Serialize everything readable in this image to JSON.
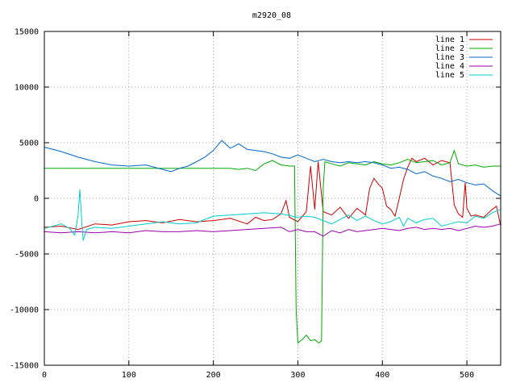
{
  "chart_data": {
    "type": "line",
    "title": "m2920_08",
    "xlabel": "",
    "ylabel": "",
    "xlim": [
      0,
      540
    ],
    "ylim": [
      -15000,
      15000
    ],
    "x_ticks": [
      0,
      100,
      200,
      300,
      400,
      500
    ],
    "y_ticks": [
      -15000,
      -10000,
      -5000,
      0,
      5000,
      10000,
      15000
    ],
    "grid": true,
    "legend_position": "top-right",
    "series": [
      {
        "name": "line 1",
        "color": "#cc0000",
        "points": [
          [
            0,
            -2600
          ],
          [
            20,
            -2500
          ],
          [
            40,
            -2800
          ],
          [
            60,
            -2300
          ],
          [
            80,
            -2400
          ],
          [
            100,
            -2100
          ],
          [
            120,
            -2000
          ],
          [
            140,
            -2200
          ],
          [
            160,
            -1900
          ],
          [
            180,
            -2100
          ],
          [
            200,
            -2000
          ],
          [
            220,
            -1800
          ],
          [
            240,
            -2300
          ],
          [
            250,
            -1700
          ],
          [
            260,
            -2000
          ],
          [
            270,
            -1900
          ],
          [
            280,
            -1400
          ],
          [
            286,
            -200
          ],
          [
            290,
            -1700
          ],
          [
            300,
            -2100
          ],
          [
            310,
            -1200
          ],
          [
            315,
            2900
          ],
          [
            320,
            -1000
          ],
          [
            324,
            3300
          ],
          [
            330,
            -1200
          ],
          [
            340,
            -1500
          ],
          [
            350,
            -800
          ],
          [
            360,
            -1800
          ],
          [
            370,
            -900
          ],
          [
            380,
            -1500
          ],
          [
            385,
            900
          ],
          [
            390,
            1800
          ],
          [
            395,
            1300
          ],
          [
            400,
            900
          ],
          [
            405,
            -700
          ],
          [
            410,
            -1000
          ],
          [
            415,
            -1600
          ],
          [
            420,
            0
          ],
          [
            425,
            1700
          ],
          [
            430,
            2800
          ],
          [
            435,
            3600
          ],
          [
            440,
            3300
          ],
          [
            450,
            3600
          ],
          [
            460,
            3000
          ],
          [
            470,
            3400
          ],
          [
            480,
            3200
          ],
          [
            485,
            -600
          ],
          [
            490,
            -1400
          ],
          [
            495,
            -1700
          ],
          [
            498,
            1400
          ],
          [
            500,
            -900
          ],
          [
            505,
            -1600
          ],
          [
            510,
            -1500
          ],
          [
            520,
            -1700
          ],
          [
            530,
            -1000
          ],
          [
            535,
            -700
          ],
          [
            540,
            -2500
          ]
        ]
      },
      {
        "name": "line 2",
        "color": "#00aa00",
        "points": [
          [
            0,
            2700
          ],
          [
            50,
            2700
          ],
          [
            100,
            2700
          ],
          [
            150,
            2700
          ],
          [
            200,
            2700
          ],
          [
            220,
            2700
          ],
          [
            230,
            2600
          ],
          [
            240,
            2700
          ],
          [
            250,
            2500
          ],
          [
            260,
            3100
          ],
          [
            270,
            3400
          ],
          [
            280,
            3000
          ],
          [
            290,
            2900
          ],
          [
            296,
            2900
          ],
          [
            298,
            -10000
          ],
          [
            300,
            -13000
          ],
          [
            305,
            -12700
          ],
          [
            310,
            -12300
          ],
          [
            315,
            -12800
          ],
          [
            320,
            -12700
          ],
          [
            325,
            -13000
          ],
          [
            328,
            -12800
          ],
          [
            330,
            1000
          ],
          [
            332,
            3300
          ],
          [
            340,
            3100
          ],
          [
            350,
            2900
          ],
          [
            360,
            3200
          ],
          [
            370,
            3100
          ],
          [
            380,
            3000
          ],
          [
            390,
            3300
          ],
          [
            400,
            3100
          ],
          [
            410,
            3000
          ],
          [
            420,
            3200
          ],
          [
            430,
            3500
          ],
          [
            440,
            3200
          ],
          [
            450,
            3300
          ],
          [
            460,
            3400
          ],
          [
            470,
            3000
          ],
          [
            480,
            3200
          ],
          [
            485,
            4300
          ],
          [
            490,
            3100
          ],
          [
            500,
            2900
          ],
          [
            510,
            3000
          ],
          [
            520,
            2800
          ],
          [
            530,
            2900
          ],
          [
            540,
            2900
          ]
        ]
      },
      {
        "name": "line 3",
        "color": "#0066cc",
        "points": [
          [
            0,
            4600
          ],
          [
            20,
            4200
          ],
          [
            40,
            3700
          ],
          [
            60,
            3300
          ],
          [
            80,
            3000
          ],
          [
            100,
            2900
          ],
          [
            120,
            3000
          ],
          [
            140,
            2600
          ],
          [
            150,
            2400
          ],
          [
            160,
            2700
          ],
          [
            170,
            2900
          ],
          [
            180,
            3300
          ],
          [
            190,
            3700
          ],
          [
            200,
            4300
          ],
          [
            210,
            5200
          ],
          [
            220,
            4500
          ],
          [
            230,
            4900
          ],
          [
            240,
            4400
          ],
          [
            250,
            4300
          ],
          [
            260,
            4200
          ],
          [
            270,
            4000
          ],
          [
            280,
            3700
          ],
          [
            290,
            3600
          ],
          [
            300,
            3900
          ],
          [
            310,
            3600
          ],
          [
            320,
            3300
          ],
          [
            330,
            3500
          ],
          [
            340,
            3300
          ],
          [
            350,
            3200
          ],
          [
            360,
            3300
          ],
          [
            370,
            3200
          ],
          [
            380,
            3300
          ],
          [
            390,
            3200
          ],
          [
            400,
            3000
          ],
          [
            410,
            2700
          ],
          [
            420,
            2800
          ],
          [
            430,
            2600
          ],
          [
            440,
            2200
          ],
          [
            450,
            2400
          ],
          [
            460,
            2000
          ],
          [
            470,
            1800
          ],
          [
            480,
            1500
          ],
          [
            490,
            1700
          ],
          [
            500,
            1400
          ],
          [
            510,
            1200
          ],
          [
            520,
            1300
          ],
          [
            530,
            700
          ],
          [
            540,
            200
          ]
        ]
      },
      {
        "name": "line 4",
        "color": "#9900aa",
        "points": [
          [
            0,
            -3000
          ],
          [
            20,
            -3100
          ],
          [
            40,
            -3000
          ],
          [
            60,
            -3100
          ],
          [
            80,
            -3000
          ],
          [
            100,
            -3100
          ],
          [
            120,
            -2900
          ],
          [
            140,
            -3000
          ],
          [
            160,
            -3000
          ],
          [
            180,
            -2900
          ],
          [
            200,
            -3000
          ],
          [
            220,
            -2900
          ],
          [
            240,
            -2800
          ],
          [
            260,
            -2700
          ],
          [
            280,
            -2600
          ],
          [
            290,
            -3000
          ],
          [
            300,
            -2800
          ],
          [
            310,
            -3000
          ],
          [
            320,
            -3000
          ],
          [
            330,
            -3400
          ],
          [
            340,
            -2900
          ],
          [
            350,
            -3100
          ],
          [
            360,
            -2800
          ],
          [
            370,
            -3000
          ],
          [
            380,
            -2900
          ],
          [
            390,
            -2800
          ],
          [
            400,
            -2700
          ],
          [
            410,
            -2800
          ],
          [
            420,
            -2900
          ],
          [
            430,
            -2700
          ],
          [
            440,
            -2600
          ],
          [
            450,
            -2800
          ],
          [
            460,
            -2700
          ],
          [
            470,
            -2800
          ],
          [
            480,
            -2700
          ],
          [
            490,
            -2900
          ],
          [
            500,
            -2700
          ],
          [
            510,
            -2500
          ],
          [
            520,
            -2600
          ],
          [
            530,
            -2500
          ],
          [
            540,
            -2300
          ]
        ]
      },
      {
        "name": "line 5",
        "color": "#00cccc",
        "points": [
          [
            0,
            -2700
          ],
          [
            10,
            -2500
          ],
          [
            20,
            -2300
          ],
          [
            30,
            -2700
          ],
          [
            36,
            -3300
          ],
          [
            40,
            -1500
          ],
          [
            42,
            800
          ],
          [
            44,
            -1700
          ],
          [
            46,
            -3800
          ],
          [
            50,
            -2800
          ],
          [
            60,
            -2600
          ],
          [
            80,
            -2700
          ],
          [
            100,
            -2500
          ],
          [
            120,
            -2300
          ],
          [
            140,
            -2100
          ],
          [
            160,
            -2300
          ],
          [
            180,
            -2200
          ],
          [
            200,
            -1600
          ],
          [
            220,
            -1500
          ],
          [
            240,
            -1400
          ],
          [
            260,
            -1300
          ],
          [
            280,
            -1400
          ],
          [
            300,
            -1700
          ],
          [
            310,
            -1600
          ],
          [
            320,
            -1700
          ],
          [
            340,
            -2300
          ],
          [
            350,
            -1900
          ],
          [
            360,
            -1500
          ],
          [
            370,
            -2000
          ],
          [
            380,
            -1600
          ],
          [
            390,
            -2000
          ],
          [
            400,
            -2300
          ],
          [
            410,
            -2100
          ],
          [
            420,
            -1700
          ],
          [
            425,
            -2500
          ],
          [
            430,
            -1800
          ],
          [
            440,
            -2200
          ],
          [
            450,
            -1900
          ],
          [
            460,
            -1800
          ],
          [
            470,
            -2500
          ],
          [
            480,
            -2300
          ],
          [
            490,
            -2100
          ],
          [
            500,
            -2200
          ],
          [
            510,
            -1600
          ],
          [
            520,
            -1800
          ],
          [
            530,
            -1300
          ],
          [
            540,
            -1000
          ]
        ]
      }
    ]
  }
}
